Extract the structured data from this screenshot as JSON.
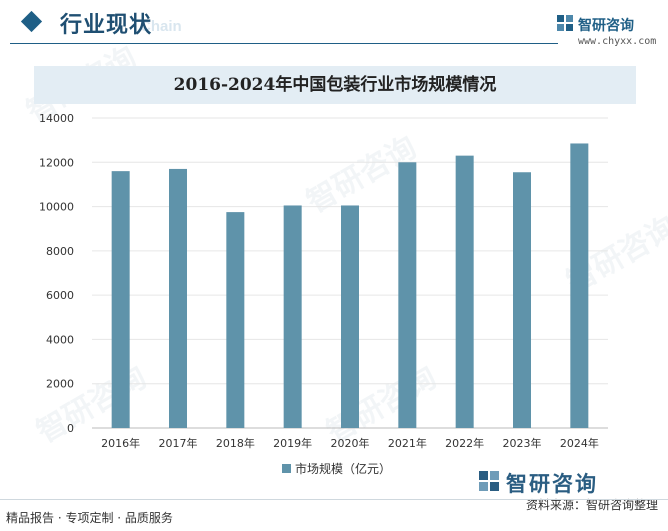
{
  "header": {
    "section_title": "行业现状",
    "section_subtitle": "Chain",
    "brand_name": "智研咨询",
    "brand_url": "www.chyxx.com"
  },
  "watermark_text": "智研咨询",
  "colors": {
    "bar": "#5f93aa",
    "accent": "#1f5f86"
  },
  "chart_data": {
    "type": "bar",
    "title": "2016-2024年中国包装行业市场规模情况",
    "categories": [
      "2016年",
      "2017年",
      "2018年",
      "2019年",
      "2020年",
      "2021年",
      "2022年",
      "2023年",
      "2024年"
    ],
    "series": [
      {
        "name": "市场规模（亿元）",
        "values": [
          11600,
          11700,
          9750,
          10050,
          10050,
          12000,
          12300,
          11550,
          12850
        ]
      }
    ],
    "yticks": [
      0,
      2000,
      4000,
      6000,
      8000,
      10000,
      12000,
      14000
    ],
    "ylim": [
      0,
      14000
    ],
    "xlabel": "",
    "ylabel": "",
    "legend_position": "bottom"
  },
  "footer": {
    "left": "精品报告 · 专项定制 · 品质服务",
    "right": "资料来源：智研咨询整理",
    "brand": "智研咨询"
  }
}
